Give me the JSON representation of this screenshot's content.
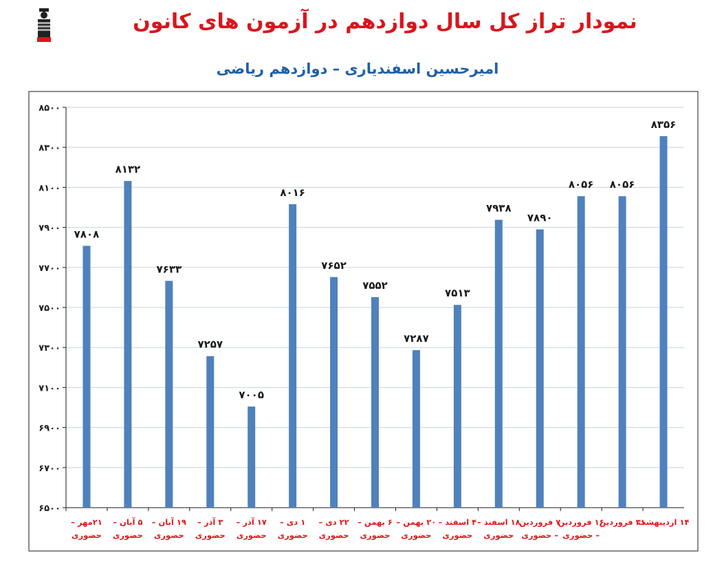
{
  "title": "نمودار تراز کل سال دوازدهم در آزمون های کانون",
  "subtitle": "امیرحسین اسفندیاری – دوازدهم ریاضی",
  "colors": {
    "title": "#d9161c",
    "subtitle": "#1f5fa8",
    "bar": "#4f81bd",
    "grid": "#c6d2e6",
    "category": "#e0181c"
  },
  "chart_data": {
    "type": "bar",
    "title": "",
    "xlabel": "",
    "ylabel": "",
    "ylim": [
      6500,
      8500
    ],
    "yticks": [
      "۶۵۰۰",
      "۶۷۰۰",
      "۶۹۰۰",
      "۷۱۰۰",
      "۷۳۰۰",
      "۷۵۰۰",
      "۷۷۰۰",
      "۷۹۰۰",
      "۸۱۰۰",
      "۸۳۰۰",
      "۸۵۰۰"
    ],
    "grid": true,
    "legend": "none",
    "categories": [
      [
        "۲۱مهر –",
        "حضوری"
      ],
      [
        "۵ آبان –",
        "حضوری"
      ],
      [
        "۱۹ آبان –",
        "حضوری"
      ],
      [
        "۳ آذر –",
        "حضوری"
      ],
      [
        "۱۷ آذر –",
        "حضوری"
      ],
      [
        "۱ دی –",
        "حضوری"
      ],
      [
        "۲۲ دی –",
        "حضوری"
      ],
      [
        "۶ بهمن –",
        "حضوری"
      ],
      [
        "۲۰ بهمن –",
        "حضوری"
      ],
      [
        "۴ اسفند –",
        "حضوری"
      ],
      [
        "۱۸ اسفند –",
        "حضوری"
      ],
      [
        "۷ فروردین",
        "– حضوری"
      ],
      [
        "۱۶ فروردین",
        "– حضوری"
      ],
      [
        "۳۱ فروردین",
        ""
      ],
      [
        "۱۴ اردیبهشت",
        ""
      ]
    ],
    "values": [
      7808,
      8132,
      7633,
      7257,
      7005,
      8016,
      7652,
      7552,
      7287,
      7513,
      7938,
      7890,
      8056,
      8056,
      8356
    ],
    "value_labels": [
      "۷۸۰۸",
      "۸۱۳۲",
      "۷۶۳۳",
      "۷۲۵۷",
      "۷۰۰۵",
      "۸۰۱۶",
      "۷۶۵۲",
      "۷۵۵۲",
      "۷۲۸۷",
      "۷۵۱۳",
      "۷۹۳۸",
      "۷۸۹۰",
      "۸۰۵۶",
      "۸۰۵۶",
      "۸۳۵۶"
    ]
  }
}
